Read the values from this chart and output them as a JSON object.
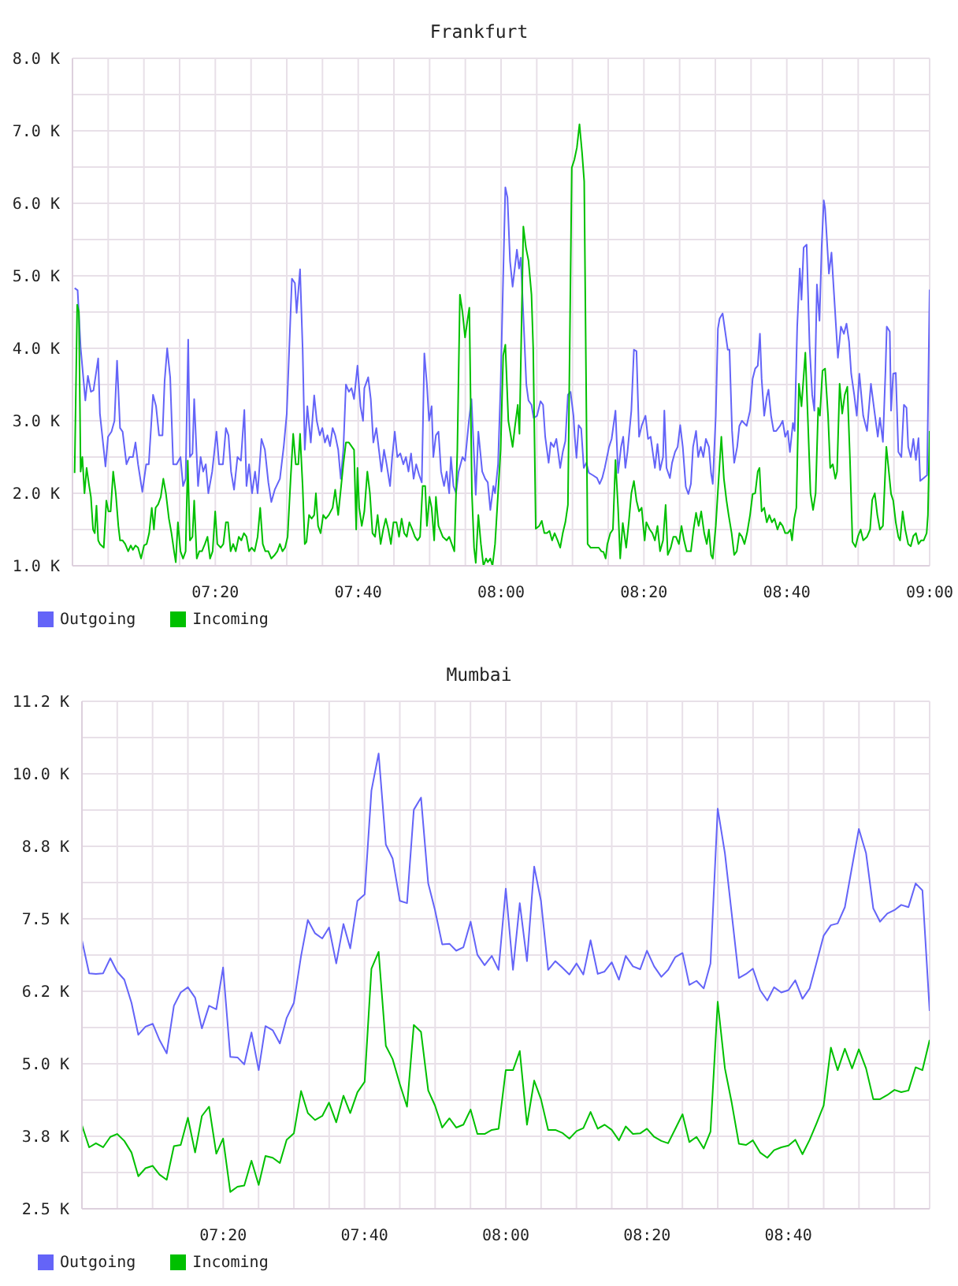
{
  "chart_data": [
    {
      "type": "line",
      "title": "Frankfurt",
      "xlim": [
        7,
        9
      ],
      "xticks": [
        {
          "value": 7.0833,
          "label": null
        },
        {
          "value": 7.1667,
          "label": null
        },
        {
          "value": 7.25,
          "label": null
        },
        {
          "value": 7.3333,
          "label": "07:20"
        },
        {
          "value": 7.4167,
          "label": null
        },
        {
          "value": 7.5,
          "label": null
        },
        {
          "value": 7.5833,
          "label": null
        },
        {
          "value": 7.6667,
          "label": "07:40"
        },
        {
          "value": 7.75,
          "label": null
        },
        {
          "value": 7.8333,
          "label": null
        },
        {
          "value": 7.9167,
          "label": null
        },
        {
          "value": 8,
          "label": "08:00"
        },
        {
          "value": 8.0833,
          "label": null
        },
        {
          "value": 8.1667,
          "label": null
        },
        {
          "value": 8.25,
          "label": null
        },
        {
          "value": 8.3333,
          "label": "08:20"
        },
        {
          "value": 8.4167,
          "label": null
        },
        {
          "value": 8.5,
          "label": null
        },
        {
          "value": 8.5833,
          "label": null
        },
        {
          "value": 8.6667,
          "label": "08:40"
        },
        {
          "value": 8.75,
          "label": null
        },
        {
          "value": 8.8333,
          "label": null
        },
        {
          "value": 8.9167,
          "label": null
        },
        {
          "value": 9,
          "label": "09:00"
        }
      ],
      "ylim": [
        1000,
        8000
      ],
      "yticks": [
        {
          "value": 1000,
          "label": "1.0 K"
        },
        {
          "value": 1500,
          "label": null
        },
        {
          "value": 2000,
          "label": "2.0 K"
        },
        {
          "value": 2500,
          "label": null
        },
        {
          "value": 3000,
          "label": "3.0 K"
        },
        {
          "value": 3500,
          "label": null
        },
        {
          "value": 4000,
          "label": "4.0 K"
        },
        {
          "value": 4500,
          "label": null
        },
        {
          "value": 5000,
          "label": "5.0 K"
        },
        {
          "value": 5500,
          "label": null
        },
        {
          "value": 6000,
          "label": "6.0 K"
        },
        {
          "value": 6500,
          "label": null
        },
        {
          "value": 7000,
          "label": "7.0 K"
        },
        {
          "value": 7500,
          "label": null
        },
        {
          "value": 8000,
          "label": "8.0 K"
        }
      ],
      "grid": true,
      "legend": "bottom left",
      "series": [
        {
          "name": "Outgoing",
          "color": "#6464f8",
          "x": [
            7.005,
            7.012,
            7.019,
            7.03,
            7.036,
            7.043,
            7.049,
            7.056,
            7.06,
            7.064,
            7.073,
            7.077,
            7.083,
            7.091,
            7.098,
            7.104,
            7.111,
            7.117,
            7.126,
            7.133,
            7.141,
            7.147,
            7.153,
            7.163,
            7.172,
            7.178,
            7.188,
            7.195,
            7.202,
            7.21,
            7.215,
            7.221,
            7.228,
            7.235,
            7.243,
            7.252,
            7.258,
            7.264,
            7.27,
            7.274,
            7.28,
            7.284,
            7.293,
            7.299,
            7.305,
            7.311,
            7.317,
            7.326,
            7.336,
            7.342,
            7.351,
            7.358,
            7.364,
            7.37,
            7.377,
            7.385,
            7.393,
            7.401,
            7.406,
            7.412,
            7.419,
            7.426,
            7.432,
            7.441,
            7.449,
            7.457,
            7.464,
            7.472,
            7.484,
            7.493,
            7.5,
            7.512,
            7.519,
            7.523,
            7.531,
            7.537,
            7.542,
            7.548,
            7.556,
            7.564,
            7.57,
            7.577,
            7.583,
            7.589,
            7.595,
            7.601,
            7.607,
            7.613,
            7.62,
            7.626,
            7.632,
            7.638,
            7.645,
            7.651,
            7.657,
            7.665,
            7.672,
            7.678,
            7.681,
            7.69,
            7.696,
            7.702,
            7.709,
            7.715,
            7.721,
            7.727,
            7.733,
            7.741,
            7.746,
            7.752,
            7.758,
            7.765,
            7.772,
            7.778,
            7.784,
            7.79,
            7.796,
            7.802,
            7.809,
            7.815,
            7.821,
            7.827,
            7.832,
            7.838,
            7.842,
            7.848,
            7.854,
            7.86,
            7.867,
            7.873,
            7.879,
            7.883,
            7.889,
            7.895,
            7.901,
            7.91,
            7.916,
            7.925,
            7.931,
            7.941,
            7.947,
            7.956,
            7.963,
            7.969,
            7.975,
            7.982,
            7.986,
            7.993,
            7.999,
            8.005,
            8.01,
            8.015,
            8.021,
            8.027,
            8.037,
            8.042,
            8.046,
            8.052,
            8.059,
            8.064,
            8.071,
            8.076,
            8.084,
            8.092,
            8.098,
            8.103,
            8.111,
            8.116,
            8.123,
            8.129,
            8.134,
            8.138,
            8.144,
            8.15,
            8.156,
            8.162,
            8.169,
            8.172,
            8.176,
            8.181,
            8.187,
            8.193,
            8.199,
            8.205,
            8.214,
            8.224,
            8.23,
            8.236,
            8.242,
            8.252,
            8.258,
            8.267,
            8.273,
            8.28,
            8.285,
            8.29,
            8.295,
            8.304,
            8.31,
            8.316,
            8.322,
            8.328,
            8.337,
            8.343,
            8.349,
            8.359,
            8.365,
            8.371,
            8.378,
            8.381,
            8.386,
            8.394,
            8.399,
            8.406,
            8.412,
            8.418,
            8.424,
            8.431,
            8.437,
            8.443,
            8.448,
            8.455,
            8.46,
            8.466,
            8.472,
            8.478,
            8.485,
            8.49,
            8.494,
            8.501,
            8.506,
            8.51,
            8.517,
            8.523,
            8.529,
            8.533,
            8.539,
            8.544,
            8.551,
            8.556,
            8.562,
            8.573,
            8.581,
            8.587,
            8.593,
            8.599,
            8.604,
            8.608,
            8.614,
            8.62,
            8.624,
            8.63,
            8.636,
            8.642,
            8.651,
            8.657,
            8.663,
            8.669,
            8.674,
            8.681,
            8.685,
            8.691,
            8.697,
            8.701,
            8.706,
            8.713,
            8.72,
            8.726,
            8.731,
            8.737,
            8.743,
            8.748,
            8.753,
            8.756,
            8.765,
            8.771,
            8.777,
            8.786,
            8.793,
            8.8,
            8.806,
            8.812,
            8.817,
            8.824,
            8.83,
            8.836,
            8.845,
            8.854,
            8.863,
            8.871,
            8.879,
            8.884,
            8.891,
            8.897,
            8.9,
            8.907,
            8.91,
            8.915,
            8.921,
            8.927,
            8.934,
            8.94,
            8.946,
            8.95,
            8.956,
            8.962,
            8.968,
            8.974,
            8.978,
            8.986,
            8.994,
            9
          ],
          "values": [
            4830,
            4800,
            4010,
            3280,
            3620,
            3400,
            3420,
            3700,
            3860,
            3100,
            2600,
            2370,
            2780,
            2850,
            3000,
            3830,
            2900,
            2850,
            2400,
            2500,
            2500,
            2700,
            2400,
            2020,
            2400,
            2400,
            3360,
            3200,
            2800,
            2800,
            3550,
            4000,
            3600,
            2400,
            2400,
            2500,
            2100,
            2200,
            4120,
            2500,
            2550,
            3300,
            2100,
            2500,
            2300,
            2400,
            2000,
            2300,
            2850,
            2400,
            2400,
            2900,
            2800,
            2300,
            2050,
            2500,
            2450,
            3150,
            2100,
            2400,
            2000,
            2300,
            2000,
            2750,
            2600,
            2150,
            1880,
            2050,
            2200,
            2650,
            3100,
            4960,
            4900,
            4490,
            5090,
            4000,
            2600,
            3200,
            2700,
            3350,
            3000,
            2800,
            2900,
            2700,
            2800,
            2650,
            2900,
            2800,
            2600,
            2200,
            2600,
            3500,
            3400,
            3450,
            3300,
            3760,
            3200,
            3000,
            3450,
            3600,
            3300,
            2700,
            2900,
            2600,
            2300,
            2600,
            2400,
            2100,
            2500,
            2850,
            2500,
            2550,
            2400,
            2500,
            2300,
            2550,
            2200,
            2400,
            2250,
            2150,
            3930,
            3500,
            3000,
            3200,
            2500,
            2800,
            2850,
            2300,
            2100,
            2300,
            2000,
            2500,
            2100,
            2000,
            2300,
            2500,
            2450,
            3000,
            3300,
            1980,
            2850,
            2300,
            2200,
            2150,
            1770,
            2100,
            2000,
            2400,
            3500,
            5000,
            6220,
            6080,
            5200,
            4850,
            5360,
            5100,
            5250,
            4450,
            3500,
            3280,
            3220,
            3040,
            3070,
            3270,
            3220,
            2780,
            2420,
            2700,
            2640,
            2750,
            2530,
            2350,
            2570,
            2720,
            3360,
            3400,
            3070,
            2780,
            2490,
            2940,
            2890,
            2350,
            2420,
            2280,
            2250,
            2210,
            2130,
            2210,
            2350,
            2640,
            2750,
            3140,
            2280,
            2640,
            2780,
            2350,
            2570,
            3140,
            3980,
            3960,
            2780,
            2930,
            3070,
            2750,
            2780,
            2350,
            2680,
            2320,
            2500,
            3140,
            2350,
            2210,
            2420,
            2570,
            2640,
            2940,
            2640,
            2090,
            1990,
            2130,
            2640,
            2860,
            2500,
            2640,
            2500,
            2750,
            2640,
            2280,
            2130,
            3070,
            4270,
            4410,
            4480,
            4230,
            3980,
            3980,
            2860,
            2420,
            2640,
            2930,
            3000,
            2930,
            3140,
            3580,
            3720,
            3760,
            4200,
            3580,
            3070,
            3330,
            3430,
            3070,
            2860,
            2860,
            2930,
            3000,
            2780,
            2860,
            2570,
            2970,
            2860,
            4300,
            5100,
            4670,
            5390,
            5430,
            4020,
            3360,
            3140,
            4880,
            4380,
            5390,
            6040,
            5930,
            5030,
            5320,
            4740,
            3870,
            4300,
            4200,
            4340,
            4090,
            3650,
            3360,
            3070,
            3650,
            3070,
            2860,
            3510,
            3140,
            2780,
            3040,
            2710,
            3690,
            4300,
            4230,
            3140,
            3650,
            3660,
            2570,
            2500,
            3220,
            3180,
            2640,
            2500,
            2750,
            2460,
            2760,
            2170,
            2210,
            2250,
            4810
          ]
        },
        {
          "name": "Incoming",
          "color": "#00c000",
          "x": [
            7.005,
            7.011,
            7.015,
            7.019,
            7.023,
            7.028,
            7.033,
            7.039,
            7.043,
            7.048,
            7.052,
            7.056,
            7.06,
            7.064,
            7.073,
            7.079,
            7.084,
            7.089,
            7.095,
            7.101,
            7.107,
            7.111,
            7.117,
            7.123,
            7.13,
            7.136,
            7.141,
            7.147,
            7.153,
            7.16,
            7.167,
            7.173,
            7.179,
            7.185,
            7.19,
            7.194,
            7.2,
            7.206,
            7.212,
            7.218,
            7.225,
            7.231,
            7.237,
            7.241,
            7.246,
            7.252,
            7.258,
            7.264,
            7.269,
            7.274,
            7.28,
            7.284,
            7.29,
            7.296,
            7.302,
            7.309,
            7.315,
            7.321,
            7.327,
            7.333,
            7.338,
            7.346,
            7.352,
            7.358,
            7.363,
            7.369,
            7.375,
            7.381,
            7.388,
            7.394,
            7.4,
            7.406,
            7.412,
            7.418,
            7.425,
            7.432,
            7.438,
            7.444,
            7.45,
            7.457,
            7.464,
            7.472,
            7.478,
            7.484,
            7.49,
            7.496,
            7.502,
            7.509,
            7.515,
            7.521,
            7.527,
            7.531,
            7.537,
            7.542,
            7.546,
            7.552,
            7.558,
            7.564,
            7.568,
            7.573,
            7.579,
            7.585,
            7.591,
            7.598,
            7.607,
            7.613,
            7.62,
            7.632,
            7.638,
            7.645,
            7.657,
            7.662,
            7.665,
            7.669,
            7.675,
            7.681,
            7.688,
            7.694,
            7.7,
            7.706,
            7.712,
            7.719,
            7.725,
            7.731,
            7.737,
            7.743,
            7.749,
            7.756,
            7.762,
            7.768,
            7.774,
            7.78,
            7.786,
            7.793,
            7.799,
            7.805,
            7.811,
            7.817,
            7.823,
            7.827,
            7.833,
            7.838,
            7.844,
            7.848,
            7.854,
            7.864,
            7.873,
            7.879,
            7.885,
            7.891,
            7.898,
            7.904,
            7.91,
            7.916,
            7.922,
            7.926,
            7.932,
            7.937,
            7.941,
            7.947,
            7.953,
            7.959,
            7.965,
            7.969,
            7.975,
            7.98,
            7.986,
            7.993,
            7.999,
            8.005,
            8.01,
            8.017,
            8.027,
            8.032,
            8.039,
            8.043,
            8.052,
            8.058,
            8.064,
            8.071,
            8.075,
            8.081,
            8.089,
            8.095,
            8.101,
            8.107,
            8.113,
            8.119,
            8.125,
            8.132,
            8.138,
            8.144,
            8.15,
            8.156,
            8.165,
            8.171,
            8.177,
            8.183,
            8.189,
            8.194,
            8.202,
            8.209,
            8.216,
            8.221,
            8.228,
            8.234,
            8.239,
            8.244,
            8.248,
            8.255,
            8.261,
            8.267,
            8.273,
            8.278,
            8.284,
            8.292,
            8.298,
            8.304,
            8.31,
            8.316,
            8.322,
            8.328,
            8.335,
            8.339,
            8.347,
            8.353,
            8.359,
            8.365,
            8.371,
            8.378,
            8.384,
            8.389,
            8.396,
            8.402,
            8.408,
            8.415,
            8.421,
            8.427,
            8.433,
            8.443,
            8.449,
            8.455,
            8.461,
            8.467,
            8.474,
            8.48,
            8.485,
            8.49,
            8.494,
            8.501,
            8.507,
            8.514,
            8.52,
            8.526,
            8.531,
            8.538,
            8.544,
            8.55,
            8.556,
            8.562,
            8.568,
            8.574,
            8.581,
            8.587,
            8.593,
            8.599,
            8.603,
            8.608,
            8.614,
            8.62,
            8.626,
            8.632,
            8.638,
            8.645,
            8.651,
            8.657,
            8.663,
            8.669,
            8.675,
            8.679,
            8.684,
            8.689,
            8.695,
            8.701,
            8.71,
            8.716,
            8.722,
            8.728,
            8.734,
            8.74,
            8.744,
            8.75,
            8.756,
            8.763,
            8.768,
            8.774,
            8.78,
            8.784,
            8.79,
            8.796,
            8.802,
            8.808,
            8.814,
            8.82,
            8.827,
            8.833,
            8.839,
            8.845,
            8.854,
            8.861,
            8.866,
            8.872,
            8.878,
            8.884,
            8.891,
            8.899,
            8.904,
            8.91,
            8.915,
            8.921,
            8.927,
            8.931,
            8.937,
            8.943,
            8.95,
            8.956,
            8.962,
            8.968,
            8.974,
            8.98,
            8.986,
            8.993,
            8.996,
            9
          ],
          "values": [
            2280,
            4600,
            4500,
            2300,
            2500,
            2000,
            2350,
            2100,
            1950,
            1500,
            1450,
            1830,
            1350,
            1300,
            1250,
            1900,
            1750,
            1750,
            2300,
            2000,
            1550,
            1350,
            1350,
            1300,
            1200,
            1280,
            1220,
            1280,
            1250,
            1100,
            1280,
            1300,
            1450,
            1800,
            1500,
            1800,
            1850,
            1950,
            2200,
            2000,
            1650,
            1450,
            1200,
            1050,
            1600,
            1200,
            1100,
            1200,
            2450,
            1350,
            1400,
            1900,
            1100,
            1200,
            1200,
            1300,
            1400,
            1100,
            1200,
            1750,
            1300,
            1250,
            1300,
            1600,
            1600,
            1200,
            1300,
            1200,
            1400,
            1350,
            1450,
            1400,
            1200,
            1250,
            1200,
            1400,
            1800,
            1300,
            1200,
            1200,
            1100,
            1150,
            1200,
            1300,
            1200,
            1250,
            1400,
            2200,
            2820,
            2400,
            2400,
            2820,
            2100,
            1300,
            1330,
            1700,
            1650,
            1700,
            2000,
            1550,
            1450,
            1700,
            1650,
            1700,
            1800,
            2050,
            1700,
            2400,
            2700,
            2700,
            2600,
            1500,
            2350,
            1800,
            1550,
            1750,
            2300,
            2000,
            1450,
            1400,
            1700,
            1300,
            1500,
            1650,
            1500,
            1300,
            1600,
            1600,
            1400,
            1650,
            1450,
            1400,
            1600,
            1500,
            1400,
            1350,
            1400,
            2100,
            2100,
            1550,
            1950,
            1800,
            1350,
            1950,
            1550,
            1400,
            1350,
            1400,
            1300,
            1200,
            2600,
            4740,
            4500,
            4150,
            4400,
            4560,
            2000,
            1250,
            1040,
            1700,
            1300,
            1000,
            1100,
            1050,
            1100,
            1000,
            1300,
            2000,
            2600,
            3900,
            4050,
            3000,
            2640,
            2900,
            3220,
            2820,
            5680,
            5390,
            5210,
            4740,
            4000,
            1510,
            1550,
            1620,
            1450,
            1450,
            1480,
            1350,
            1450,
            1350,
            1250,
            1450,
            1600,
            1840,
            6490,
            6600,
            6770,
            7090,
            6700,
            6300,
            1300,
            1250,
            1250,
            1250,
            1250,
            1200,
            1190,
            1100,
            1300,
            1450,
            1500,
            2460,
            1800,
            1100,
            1590,
            1250,
            1600,
            2000,
            2170,
            1900,
            1750,
            1800,
            1350,
            1600,
            1500,
            1450,
            1350,
            1550,
            1200,
            1350,
            1840,
            1150,
            1250,
            1400,
            1400,
            1300,
            1550,
            1350,
            1200,
            1200,
            1500,
            1730,
            1550,
            1750,
            1450,
            1300,
            1500,
            1150,
            1100,
            1550,
            2130,
            2780,
            2200,
            1900,
            1700,
            1450,
            1150,
            1200,
            1450,
            1400,
            1300,
            1450,
            1700,
            1990,
            2000,
            2300,
            2350,
            1750,
            1800,
            1600,
            1700,
            1600,
            1650,
            1500,
            1600,
            1550,
            1450,
            1450,
            1500,
            1350,
            1650,
            1800,
            3510,
            3200,
            3940,
            3000,
            2000,
            1770,
            2000,
            3180,
            3070,
            3690,
            3720,
            3070,
            2350,
            2400,
            2200,
            2300,
            3510,
            3100,
            3360,
            3470,
            2490,
            1330,
            1260,
            1410,
            1500,
            1350,
            1400,
            1500,
            1910,
            2000,
            1700,
            1500,
            1550,
            2640,
            2350,
            1990,
            1900,
            1600,
            1400,
            1350,
            1750,
            1500,
            1300,
            1270,
            1410,
            1450,
            1300,
            1350,
            1350,
            1450,
            1700,
            2860
          ]
        }
      ]
    },
    {
      "type": "line",
      "title": "Mumbai",
      "x": [
        7,
        7.017,
        7.033,
        7.05,
        7.067,
        7.083,
        7.1,
        7.117,
        7.133,
        7.15,
        7.167,
        7.183,
        7.2,
        7.217,
        7.233,
        7.25,
        7.267,
        7.283,
        7.3,
        7.317,
        7.333,
        7.35,
        7.367,
        7.383,
        7.4,
        7.417,
        7.433,
        7.45,
        7.467,
        7.483,
        7.5,
        7.517,
        7.533,
        7.55,
        7.567,
        7.583,
        7.6,
        7.617,
        7.633,
        7.65,
        7.667,
        7.683,
        7.7,
        7.717,
        7.733,
        7.75,
        7.767,
        7.783,
        7.8,
        7.817,
        7.833,
        7.85,
        7.867,
        7.883,
        7.9,
        7.917,
        7.933,
        7.95,
        7.967,
        7.983,
        8,
        8.017,
        8.033,
        8.05,
        8.067,
        8.083,
        8.1,
        8.117,
        8.133,
        8.15,
        8.167,
        8.183,
        8.2,
        8.217,
        8.233,
        8.25,
        8.267,
        8.283,
        8.3,
        8.317,
        8.333,
        8.35,
        8.367,
        8.383,
        8.4,
        8.417,
        8.433,
        8.45,
        8.467,
        8.483,
        8.5,
        8.517,
        8.533,
        8.55,
        8.567,
        8.583,
        8.6,
        8.617,
        8.633,
        8.65,
        8.667,
        8.683,
        8.7,
        8.717,
        8.733,
        8.75,
        8.767,
        8.783,
        8.8,
        8.817,
        8.833,
        8.85,
        8.867,
        8.883,
        8.9,
        8.917,
        8.933,
        8.95,
        8.967,
        8.983,
        9
      ],
      "xlim": [
        7,
        9
      ],
      "xticks": [
        {
          "value": 7,
          "label": null
        },
        {
          "value": 7.0833,
          "label": null
        },
        {
          "value": 7.1667,
          "label": null
        },
        {
          "value": 7.25,
          "label": null
        },
        {
          "value": 7.3333,
          "label": "07:20"
        },
        {
          "value": 7.4167,
          "label": null
        },
        {
          "value": 7.5,
          "label": null
        },
        {
          "value": 7.5833,
          "label": null
        },
        {
          "value": 7.6667,
          "label": "07:40"
        },
        {
          "value": 7.75,
          "label": null
        },
        {
          "value": 7.8333,
          "label": null
        },
        {
          "value": 7.9167,
          "label": null
        },
        {
          "value": 8,
          "label": "08:00"
        },
        {
          "value": 8.0833,
          "label": null
        },
        {
          "value": 8.1667,
          "label": null
        },
        {
          "value": 8.25,
          "label": null
        },
        {
          "value": 8.3333,
          "label": "08:20"
        },
        {
          "value": 8.4167,
          "label": null
        },
        {
          "value": 8.5,
          "label": null
        },
        {
          "value": 8.5833,
          "label": null
        },
        {
          "value": 8.6667,
          "label": "08:40"
        },
        {
          "value": 8.75,
          "label": null
        },
        {
          "value": 8.8333,
          "label": null
        },
        {
          "value": 8.9167,
          "label": null
        },
        {
          "value": 9,
          "label": null
        }
      ],
      "ylim": [
        2500,
        11250
      ],
      "yticks": [
        {
          "value": 2500,
          "label": "2.5 K"
        },
        {
          "value": 3125,
          "label": null
        },
        {
          "value": 3750,
          "label": "3.8 K"
        },
        {
          "value": 4375,
          "label": null
        },
        {
          "value": 5000,
          "label": "5.0 K"
        },
        {
          "value": 5625,
          "label": null
        },
        {
          "value": 6250,
          "label": "6.2 K"
        },
        {
          "value": 6875,
          "label": null
        },
        {
          "value": 7500,
          "label": "7.5 K"
        },
        {
          "value": 8125,
          "label": null
        },
        {
          "value": 8750,
          "label": "8.8 K"
        },
        {
          "value": 9375,
          "label": null
        },
        {
          "value": 10000,
          "label": "10.0 K"
        },
        {
          "value": 10625,
          "label": null
        },
        {
          "value": 11250,
          "label": "11.2 K"
        }
      ],
      "grid": true,
      "legend": "bottom left",
      "series": [
        {
          "name": "Outgoing",
          "color": "#6464f8",
          "values": [
            7130,
            6560,
            6550,
            6560,
            6820,
            6590,
            6450,
            6050,
            5500,
            5640,
            5690,
            5410,
            5180,
            6000,
            6230,
            6320,
            6140,
            5610,
            6000,
            5940,
            6660,
            5120,
            5110,
            4990,
            5540,
            4890,
            5650,
            5580,
            5350,
            5790,
            6050,
            6860,
            7480,
            7250,
            7160,
            7350,
            6730,
            7410,
            6990,
            7810,
            7920,
            9710,
            10350,
            8780,
            8540,
            7810,
            7770,
            9380,
            9590,
            8110,
            7650,
            7060,
            7070,
            6950,
            7010,
            7450,
            6880,
            6700,
            6860,
            6620,
            8020,
            6620,
            7770,
            6770,
            8400,
            7810,
            6620,
            6770,
            6660,
            6540,
            6730,
            6540,
            7130,
            6550,
            6590,
            6750,
            6450,
            6860,
            6680,
            6630,
            6950,
            6680,
            6500,
            6620,
            6840,
            6910,
            6360,
            6430,
            6300,
            6730,
            9400,
            8630,
            7590,
            6480,
            6550,
            6640,
            6270,
            6090,
            6320,
            6230,
            6270,
            6440,
            6120,
            6300,
            6740,
            7210,
            7390,
            7420,
            7700,
            8400,
            9050,
            8630,
            7680,
            7450,
            7590,
            7650,
            7740,
            7700,
            8110,
            7990,
            5910
          ]
        },
        {
          "name": "Incoming",
          "color": "#00c000",
          "values": [
            3940,
            3560,
            3630,
            3560,
            3740,
            3790,
            3670,
            3470,
            3060,
            3200,
            3240,
            3090,
            3000,
            3580,
            3600,
            4070,
            3470,
            4100,
            4260,
            3450,
            3710,
            2790,
            2880,
            2900,
            3330,
            2910,
            3410,
            3380,
            3290,
            3690,
            3800,
            4530,
            4150,
            4030,
            4100,
            4330,
            3990,
            4450,
            4150,
            4510,
            4690,
            6640,
            6930,
            5310,
            5080,
            4650,
            4260,
            5670,
            5550,
            4540,
            4280,
            3900,
            4060,
            3900,
            3950,
            4210,
            3790,
            3790,
            3860,
            3880,
            4890,
            4890,
            5220,
            3950,
            4710,
            4390,
            3860,
            3860,
            3810,
            3710,
            3840,
            3890,
            4170,
            3880,
            3950,
            3860,
            3680,
            3920,
            3790,
            3800,
            3880,
            3740,
            3670,
            3630,
            3880,
            4130,
            3650,
            3740,
            3540,
            3830,
            6070,
            4920,
            4330,
            3620,
            3600,
            3680,
            3470,
            3380,
            3510,
            3560,
            3590,
            3690,
            3440,
            3690,
            3970,
            4280,
            5280,
            4890,
            5260,
            4920,
            5250,
            4920,
            4390,
            4390,
            4460,
            4550,
            4510,
            4540,
            4940,
            4890,
            5410
          ]
        }
      ]
    }
  ]
}
